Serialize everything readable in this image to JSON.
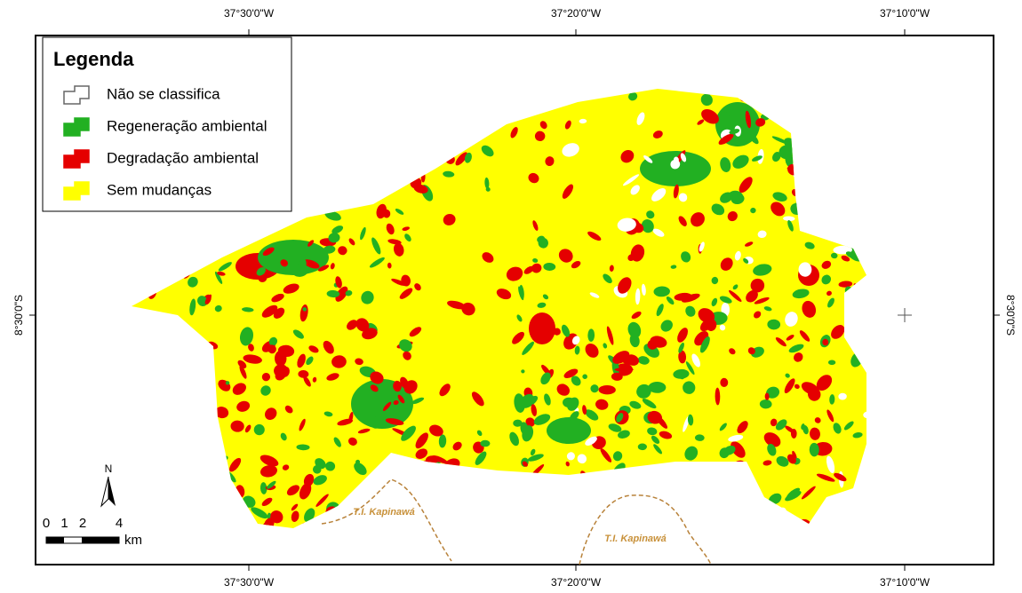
{
  "legend": {
    "title": "Legenda",
    "items": [
      {
        "label": "Não se classifica",
        "color": "#ffffff"
      },
      {
        "label": "Regeneração ambiental",
        "color": "#22b022"
      },
      {
        "label": "Degradação ambiental",
        "color": "#e50000"
      },
      {
        "label": "Sem mudanças",
        "color": "#ffff00"
      }
    ]
  },
  "grid_labels": {
    "top": [
      "37°30'0\"W",
      "37°20'0\"W",
      "37°10'0\"W"
    ],
    "bottom": [
      "37°30'0\"W",
      "37°20'0\"W",
      "37°10'0\"W"
    ],
    "left": [
      "8°30'0\"S"
    ],
    "right": [
      "8°30'0\"S"
    ]
  },
  "annotations": [
    "T.I. Kapinawá",
    "T.I. Kapinawá"
  ],
  "north_arrow": "N",
  "scale_bar": {
    "ticks": [
      0,
      1,
      2,
      4
    ],
    "unit": "km"
  }
}
